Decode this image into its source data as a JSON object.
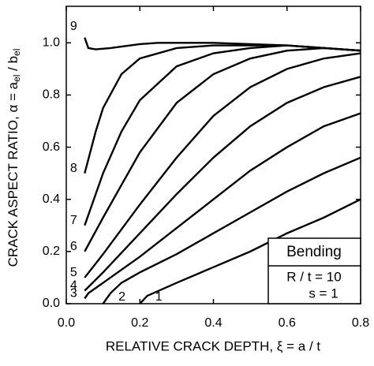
{
  "chart_data": {
    "type": "line",
    "xlabel": "RELATIVE CRACK DEPTH,  ξ = a / t",
    "ylabel": [
      "CRACK ASPECT RATIO,  α  = a",
      "el",
      " / b",
      "el"
    ],
    "legend_box": [
      "Bending",
      "R / t = 10",
      "s = 1"
    ],
    "xlim": [
      0,
      0.8
    ],
    "ylim": [
      0,
      1.14
    ],
    "xticks": [
      {
        "value": 0,
        "label": "0.0"
      },
      0.2,
      0.4,
      0.6,
      0.8
    ],
    "yticks": [
      {
        "value": 0,
        "label": "0.0"
      },
      0.2,
      0.4,
      0.6,
      0.8,
      {
        "value": 1,
        "label": "1.0"
      }
    ],
    "color": "#000000",
    "series": [
      {
        "name": "1",
        "x": [
          0.2,
          0.22,
          0.3,
          0.4,
          0.5,
          0.6,
          0.7,
          0.8
        ],
        "values": [
          0,
          0.03,
          0.08,
          0.14,
          0.2,
          0.27,
          0.33,
          0.4
        ]
      },
      {
        "name": "2",
        "x": [
          0.1,
          0.12,
          0.15,
          0.2,
          0.3,
          0.4,
          0.5,
          0.6,
          0.7,
          0.8
        ],
        "values": [
          0,
          0.04,
          0.08,
          0.12,
          0.19,
          0.27,
          0.35,
          0.43,
          0.5,
          0.56
        ]
      },
      {
        "name": "3",
        "x": [
          0.05,
          0.06,
          0.1,
          0.2,
          0.3,
          0.4,
          0.5,
          0.6,
          0.7,
          0.8
        ],
        "values": [
          0.02,
          0.04,
          0.08,
          0.18,
          0.29,
          0.4,
          0.51,
          0.6,
          0.68,
          0.73
        ]
      },
      {
        "name": "4",
        "x": [
          0.05,
          0.1,
          0.2,
          0.3,
          0.4,
          0.5,
          0.6,
          0.7,
          0.8
        ],
        "values": [
          0.05,
          0.12,
          0.27,
          0.42,
          0.56,
          0.68,
          0.77,
          0.83,
          0.87
        ]
      },
      {
        "name": "5",
        "x": [
          0.05,
          0.1,
          0.2,
          0.3,
          0.4,
          0.5,
          0.6,
          0.7,
          0.8
        ],
        "values": [
          0.1,
          0.19,
          0.38,
          0.56,
          0.72,
          0.83,
          0.9,
          0.94,
          0.96
        ]
      },
      {
        "name": "6",
        "x": [
          0.05,
          0.1,
          0.2,
          0.3,
          0.4,
          0.5,
          0.6,
          0.7,
          0.8
        ],
        "values": [
          0.2,
          0.33,
          0.58,
          0.77,
          0.88,
          0.94,
          0.97,
          0.98,
          0.97
        ]
      },
      {
        "name": "7",
        "x": [
          0.05,
          0.1,
          0.15,
          0.2,
          0.3,
          0.4,
          0.5,
          0.6,
          0.8
        ],
        "values": [
          0.3,
          0.5,
          0.66,
          0.78,
          0.91,
          0.96,
          0.98,
          0.99,
          0.97
        ]
      },
      {
        "name": "8",
        "x": [
          0.05,
          0.08,
          0.1,
          0.15,
          0.2,
          0.3,
          0.4,
          0.6,
          0.8
        ],
        "values": [
          0.5,
          0.66,
          0.75,
          0.88,
          0.94,
          0.98,
          0.99,
          0.99,
          0.97
        ]
      },
      {
        "name": "9",
        "x": [
          0.05,
          0.06,
          0.08,
          0.12,
          0.2,
          0.25,
          0.4,
          0.6,
          0.8
        ],
        "values": [
          1.02,
          0.98,
          0.975,
          0.98,
          0.995,
          1.0,
          1.0,
          0.99,
          0.97
        ]
      }
    ]
  }
}
